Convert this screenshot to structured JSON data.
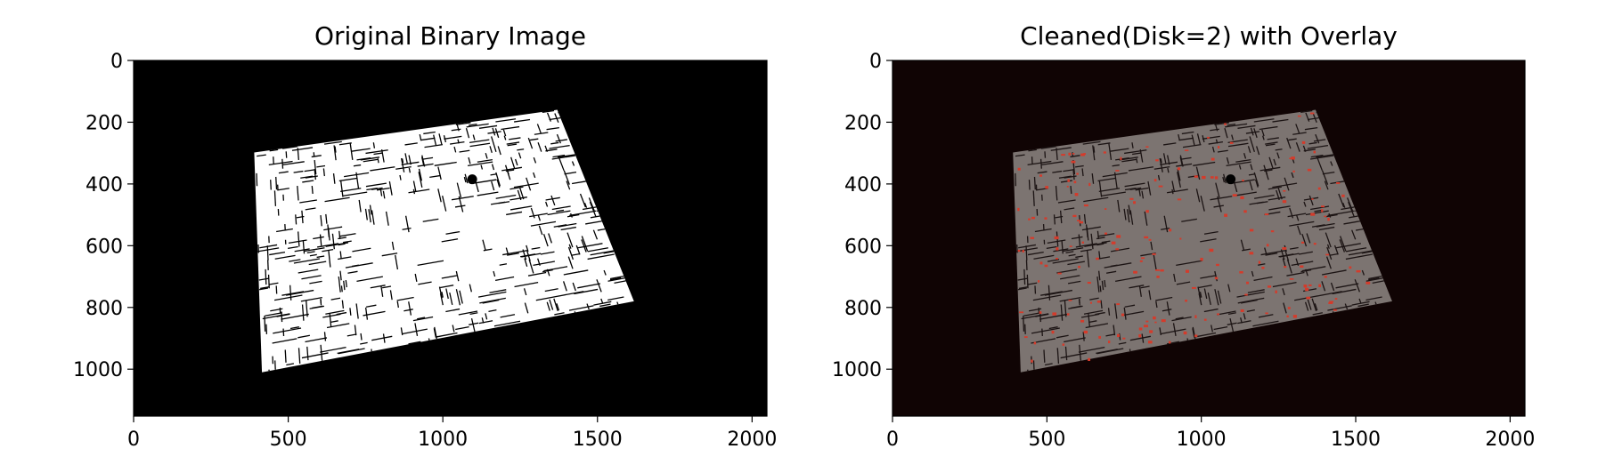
{
  "chart_data": [
    {
      "type": "image",
      "title": "Original Binary Image",
      "xlim": [
        0,
        2048
      ],
      "ylim": [
        1152,
        0
      ],
      "xticks": [
        0,
        500,
        1000,
        1500,
        2000
      ],
      "yticks": [
        0,
        200,
        400,
        600,
        800,
        1000
      ],
      "quad_corners": [
        [
          390,
          298
        ],
        [
          1370,
          160
        ],
        [
          1618,
          780
        ],
        [
          415,
          1010
        ]
      ],
      "quad_fill": "#ffffff",
      "background": "#000000",
      "line_color": "#000000",
      "overlay": false
    },
    {
      "type": "image",
      "title": "Cleaned(Disk=2) with Overlay",
      "xlim": [
        0,
        2048
      ],
      "ylim": [
        1152,
        0
      ],
      "xticks": [
        0,
        500,
        1000,
        1500,
        2000
      ],
      "yticks": [
        0,
        200,
        400,
        600,
        800,
        1000
      ],
      "quad_corners": [
        [
          390,
          298
        ],
        [
          1370,
          160
        ],
        [
          1618,
          780
        ],
        [
          415,
          1010
        ]
      ],
      "quad_fill": "#7c7471",
      "background": "#100404",
      "line_color": "#1c1414",
      "overlay": true,
      "overlay_color": "#d43b2b"
    }
  ]
}
